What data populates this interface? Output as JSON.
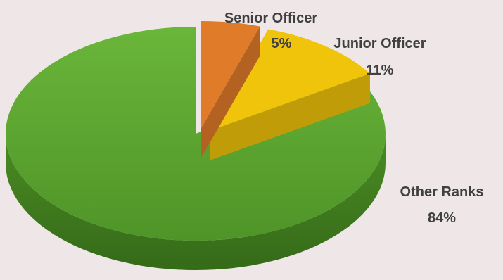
{
  "chart_data": {
    "type": "pie",
    "variant": "3d-exploded",
    "title": "",
    "slices": [
      {
        "label": "Senior Officer",
        "value": 5,
        "value_label": "5%",
        "color": "#e07b29"
      },
      {
        "label": "Junior Officer",
        "value": 11,
        "value_label": "11%",
        "color": "#f0c40a"
      },
      {
        "label": "Other Ranks",
        "value": 84,
        "value_label": "84%",
        "color": "#5aa22f"
      }
    ],
    "background": "#efe7e7",
    "label_color": "#404040"
  }
}
